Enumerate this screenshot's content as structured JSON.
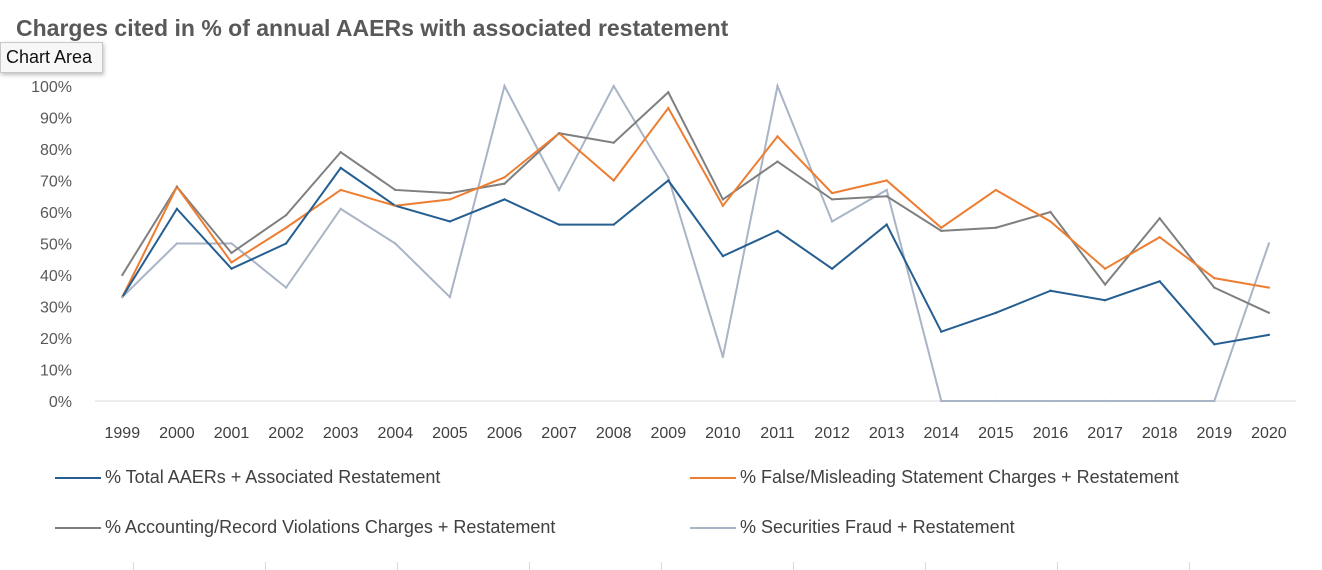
{
  "ui": {
    "tooltip": "Chart Area"
  },
  "chart_data": {
    "type": "line",
    "title": "Charges cited in % of annual AAERs with associated restatement",
    "xlabel": "",
    "ylabel": "",
    "ylim": [
      0,
      100
    ],
    "y_ticks": [
      "0%",
      "10%",
      "20%",
      "30%",
      "40%",
      "50%",
      "60%",
      "70%",
      "80%",
      "90%",
      "100%"
    ],
    "grid": false,
    "legend_position": "bottom",
    "categories": [
      "1999",
      "2000",
      "2001",
      "2002",
      "2003",
      "2004",
      "2005",
      "2006",
      "2007",
      "2008",
      "2009",
      "2010",
      "2011",
      "2012",
      "2013",
      "2014",
      "2015",
      "2016",
      "2017",
      "2018",
      "2019",
      "2020"
    ],
    "series": [
      {
        "name": "% Total AAERs + Associated Restatement",
        "color": "#255e91",
        "values": [
          33,
          61,
          42,
          50,
          74,
          62,
          57,
          64,
          56,
          56,
          70,
          46,
          54,
          42,
          56,
          22,
          28,
          35,
          32,
          38,
          18,
          21
        ]
      },
      {
        "name": "% False/Misleading Statement Charges + Restatement",
        "color": "#ed7d31",
        "values": [
          33,
          68,
          44,
          55,
          67,
          62,
          64,
          71,
          85,
          70,
          93,
          62,
          84,
          66,
          70,
          55,
          67,
          57,
          42,
          52,
          39,
          36
        ]
      },
      {
        "name": "% Accounting/Record Violations Charges + Restatement",
        "color": "#7f7f7f",
        "values": [
          40,
          68,
          47,
          59,
          79,
          67,
          66,
          69,
          85,
          82,
          98,
          64,
          76,
          64,
          65,
          54,
          55,
          60,
          37,
          58,
          36,
          28
        ]
      },
      {
        "name": "% Securities Fraud + Restatement",
        "color": "#a9b4c6",
        "values": [
          33,
          50,
          50,
          36,
          61,
          50,
          33,
          100,
          67,
          100,
          71,
          14,
          100,
          57,
          67,
          0,
          0,
          0,
          0,
          0,
          0,
          50
        ]
      }
    ]
  }
}
